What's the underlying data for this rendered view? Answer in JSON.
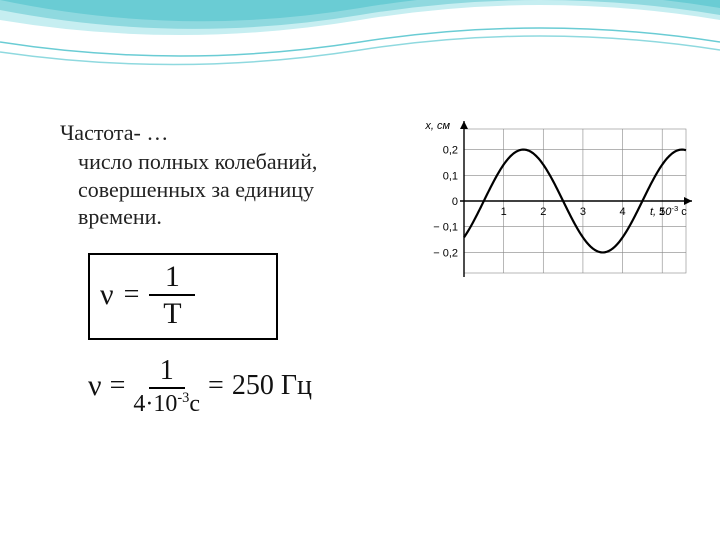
{
  "decoration": {
    "wave_colors": [
      "#6accd4",
      "#8fd9df",
      "#c6eef1"
    ],
    "background": "#ffffff"
  },
  "definition": {
    "title": "Частота- …",
    "body": "число полных колебаний, совершенных за единицу времени."
  },
  "formula_box": {
    "symbol": "ν",
    "equals": "=",
    "numerator": "1",
    "denominator": "T"
  },
  "calculation": {
    "symbol": "ν",
    "equals1": "=",
    "numerator": "1",
    "denominator_value": "4·10",
    "denominator_exp": "-3",
    "denominator_unit": "с",
    "equals2": "=",
    "result_value": "250",
    "result_unit": " Гц"
  },
  "chart": {
    "type": "line",
    "y_label": "x, см",
    "x_label_value": "t, 10",
    "x_label_exp": "-3",
    "x_label_unit": " с",
    "xlim": [
      0,
      5.6
    ],
    "ylim": [
      -0.28,
      0.28
    ],
    "x_ticks": [
      1,
      2,
      3,
      4,
      5
    ],
    "y_ticks_pos": [
      0.1,
      0.2
    ],
    "y_ticks_neg": [
      -0.1,
      -0.2
    ],
    "y_zero": "0",
    "grid_color": "#888888",
    "axis_color": "#000000",
    "curve_color": "#000000",
    "background": "#ffffff",
    "label_fontsize": 11,
    "curve": {
      "amplitude": 0.2,
      "period": 4,
      "phase_offset": 0.5
    }
  }
}
